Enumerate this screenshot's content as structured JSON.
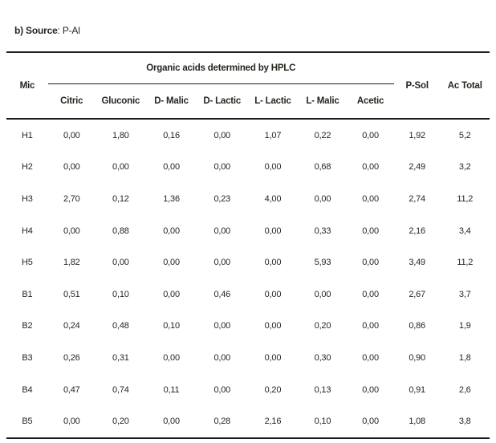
{
  "page": {
    "title_bold": "b) Source",
    "title_rest": ": P-Al"
  },
  "table": {
    "group_header": "Organic acids determined by HPLC",
    "col_mic": "Mic",
    "acid_columns": [
      "Citric",
      "Gluconic",
      "D- Malic",
      "D- Lactic",
      "L- Lactic",
      "L- Malic",
      "Acetic"
    ],
    "col_psol": "P-Sol",
    "col_actotal": "Ac Total",
    "rows": [
      {
        "mic": "H1",
        "values": [
          "0,00",
          "1,80",
          "0,16",
          "0,00",
          "1,07",
          "0,22",
          "0,00"
        ],
        "psol": "1,92",
        "ac_total": "5,2"
      },
      {
        "mic": "H2",
        "values": [
          "0,00",
          "0,00",
          "0,00",
          "0,00",
          "0,00",
          "0,68",
          "0,00"
        ],
        "psol": "2,49",
        "ac_total": "3,2"
      },
      {
        "mic": "H3",
        "values": [
          "2,70",
          "0,12",
          "1,36",
          "0,23",
          "4,00",
          "0,00",
          "0,00"
        ],
        "psol": "2,74",
        "ac_total": "11,2"
      },
      {
        "mic": "H4",
        "values": [
          "0,00",
          "0,88",
          "0,00",
          "0,00",
          "0,00",
          "0,33",
          "0,00"
        ],
        "psol": "2,16",
        "ac_total": "3,4"
      },
      {
        "mic": "H5",
        "values": [
          "1,82",
          "0,00",
          "0,00",
          "0,00",
          "0,00",
          "5,93",
          "0,00"
        ],
        "psol": "3,49",
        "ac_total": "11,2"
      },
      {
        "mic": "B1",
        "values": [
          "0,51",
          "0,10",
          "0,00",
          "0,46",
          "0,00",
          "0,00",
          "0,00"
        ],
        "psol": "2,67",
        "ac_total": "3,7"
      },
      {
        "mic": "B2",
        "values": [
          "0,24",
          "0,48",
          "0,10",
          "0,00",
          "0,00",
          "0,20",
          "0,00"
        ],
        "psol": "0,86",
        "ac_total": "1,9"
      },
      {
        "mic": "B3",
        "values": [
          "0,26",
          "0,31",
          "0,00",
          "0,00",
          "0,00",
          "0,30",
          "0,00"
        ],
        "psol": "0,90",
        "ac_total": "1,8"
      },
      {
        "mic": "B4",
        "values": [
          "0,47",
          "0,74",
          "0,11",
          "0,00",
          "0,20",
          "0,13",
          "0,00"
        ],
        "psol": "0,91",
        "ac_total": "2,6"
      },
      {
        "mic": "B5",
        "values": [
          "0,00",
          "0,20",
          "0,00",
          "0,28",
          "2,16",
          "0,10",
          "0,00"
        ],
        "psol": "1,08",
        "ac_total": "3,8"
      }
    ]
  }
}
